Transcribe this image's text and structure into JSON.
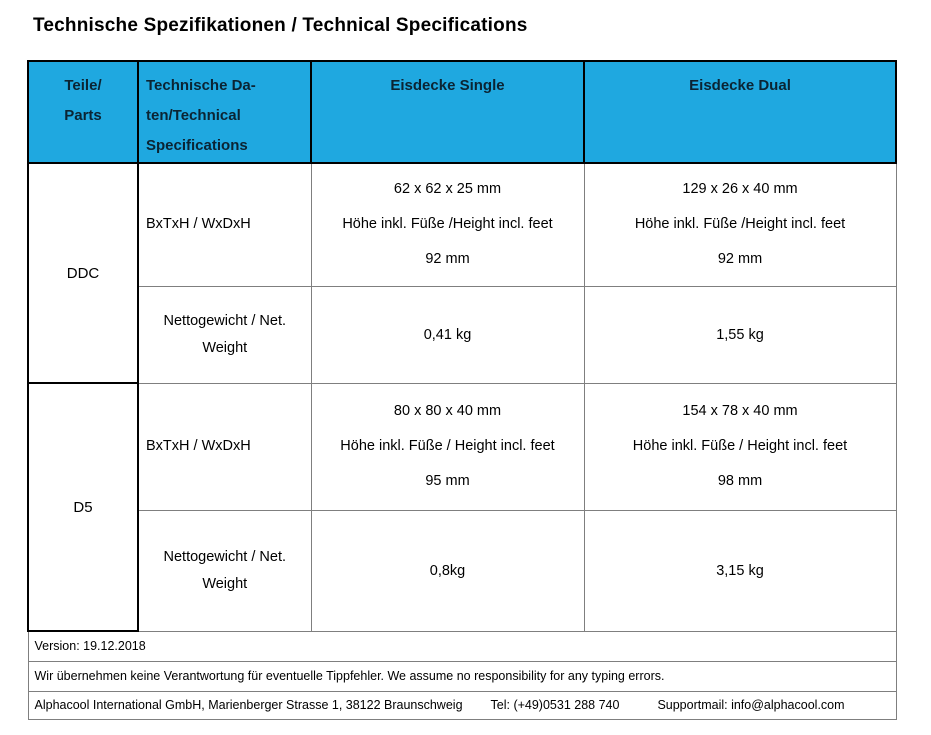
{
  "page": {
    "title": "Technische Spezifikationen / Technical Specifications"
  },
  "colors": {
    "header_bg": "#1FA8E0",
    "header_text": "#0B2433",
    "border_black": "#000000",
    "border_gray": "#7F7F7F"
  },
  "table": {
    "headers": {
      "parts_lines": [
        "Teile/",
        "Parts"
      ],
      "specs_lines": [
        "Technische Da-",
        "ten/Technical",
        "Specifications"
      ],
      "single": "Eisdecke Single",
      "dual": "Eisdecke Dual"
    },
    "sections": [
      {
        "part": "DDC",
        "dims": {
          "label": "BxTxH / WxDxH",
          "single_lines": [
            "62 x 62 x 25 mm",
            "Höhe inkl. Füße /Height incl. feet",
            "92 mm"
          ],
          "dual_lines": [
            "129 x 26 x 40 mm",
            "Höhe inkl. Füße /Height incl. feet",
            "92 mm"
          ]
        },
        "weight": {
          "label_lines": [
            "Nettogewicht / Net.",
            "Weight"
          ],
          "single": "0,41 kg",
          "dual": "1,55 kg"
        }
      },
      {
        "part": "D5",
        "dims": {
          "label": "BxTxH / WxDxH",
          "single_lines": [
            "80 x 80 x 40 mm",
            "Höhe inkl. Füße / Height incl. feet",
            "95 mm"
          ],
          "dual_lines": [
            "154 x 78 x 40 mm",
            "Höhe inkl. Füße / Height incl. feet",
            "98 mm"
          ]
        },
        "weight": {
          "label_lines": [
            "Nettogewicht / Net.",
            "Weight"
          ],
          "single": "0,8kg",
          "dual": "3,15 kg"
        }
      }
    ]
  },
  "footer": {
    "version": "Version: 19.12.2018",
    "disclaimer": "Wir übernehmen keine Verantwortung für eventuelle Tippfehler. We assume no responsibility for any typing errors.",
    "company": "Alphacool International GmbH, Marienberger Strasse 1, 38122 Braunschweig",
    "tel": "Tel: (+49)0531 288 740",
    "support": "Supportmail: info@alphacool.com"
  }
}
